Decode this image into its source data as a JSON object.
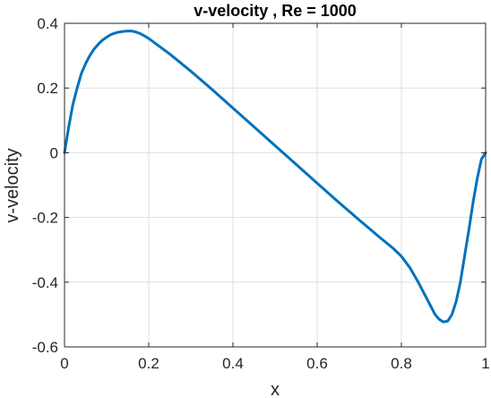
{
  "chart_data": {
    "type": "line",
    "title": "v-velocity , Re = 1000",
    "xlabel": "x",
    "ylabel": "v-velocity",
    "xlim": [
      0,
      1
    ],
    "ylim": [
      -0.6,
      0.4
    ],
    "xticks": [
      0,
      0.2,
      0.4,
      0.6,
      0.8,
      1
    ],
    "xtick_labels": [
      "0",
      "0.2",
      "0.4",
      "0.6",
      "0.8",
      "1"
    ],
    "yticks": [
      -0.6,
      -0.4,
      -0.2,
      0,
      0.2,
      0.4
    ],
    "ytick_labels": [
      "-0.6",
      "-0.4",
      "-0.2",
      "0",
      "0.2",
      "0.4"
    ],
    "grid": true,
    "series": [
      {
        "color": "#0072BD",
        "x": [
          0,
          0.005,
          0.01,
          0.02,
          0.03,
          0.04,
          0.05,
          0.06,
          0.07,
          0.08,
          0.09,
          0.1,
          0.11,
          0.12,
          0.13,
          0.14,
          0.15,
          0.16,
          0.17,
          0.18,
          0.19,
          0.2,
          0.25,
          0.3,
          0.35,
          0.4,
          0.45,
          0.5,
          0.55,
          0.6,
          0.65,
          0.7,
          0.75,
          0.78,
          0.8,
          0.82,
          0.84,
          0.86,
          0.87,
          0.88,
          0.89,
          0.9,
          0.91,
          0.92,
          0.93,
          0.94,
          0.95,
          0.96,
          0.97,
          0.98,
          0.99,
          1.0
        ],
        "y": [
          0,
          0.04,
          0.08,
          0.15,
          0.2,
          0.245,
          0.275,
          0.3,
          0.32,
          0.335,
          0.348,
          0.357,
          0.365,
          0.37,
          0.373,
          0.375,
          0.376,
          0.376,
          0.373,
          0.368,
          0.361,
          0.353,
          0.305,
          0.252,
          0.196,
          0.138,
          0.08,
          0.022,
          -0.036,
          -0.094,
          -0.152,
          -0.208,
          -0.263,
          -0.295,
          -0.32,
          -0.355,
          -0.4,
          -0.45,
          -0.475,
          -0.5,
          -0.515,
          -0.523,
          -0.52,
          -0.5,
          -0.46,
          -0.4,
          -0.32,
          -0.24,
          -0.155,
          -0.08,
          -0.02,
          0
        ]
      }
    ]
  }
}
